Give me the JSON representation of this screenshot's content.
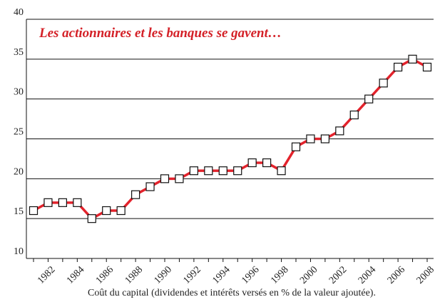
{
  "chart_data": {
    "type": "line",
    "title": "Les actionnaires et les banques se gavent…",
    "x_label": "Coût du capital (dividendes et intérêts versés en % de la valeur ajoutée).",
    "categories": [
      null,
      "1982",
      null,
      "1984",
      null,
      "1986",
      null,
      "1988",
      null,
      "1990",
      null,
      "1992",
      null,
      "1994",
      null,
      "1996",
      null,
      "1998",
      null,
      "2000",
      null,
      "2002",
      null,
      "2004",
      null,
      "2006",
      null,
      "2008"
    ],
    "series": [
      {
        "name": "Coût du capital",
        "color": "#e3232c",
        "values": [
          16,
          17,
          17,
          17,
          15,
          16,
          16,
          18,
          19,
          20,
          20,
          21,
          21,
          21,
          21,
          22,
          22,
          21,
          24,
          25,
          25,
          26,
          28,
          30,
          32,
          34,
          35,
          34
        ]
      }
    ],
    "ylim": [
      10,
      40
    ],
    "yticks": [
      10,
      15,
      20,
      25,
      30,
      35,
      40
    ],
    "grid": true
  }
}
